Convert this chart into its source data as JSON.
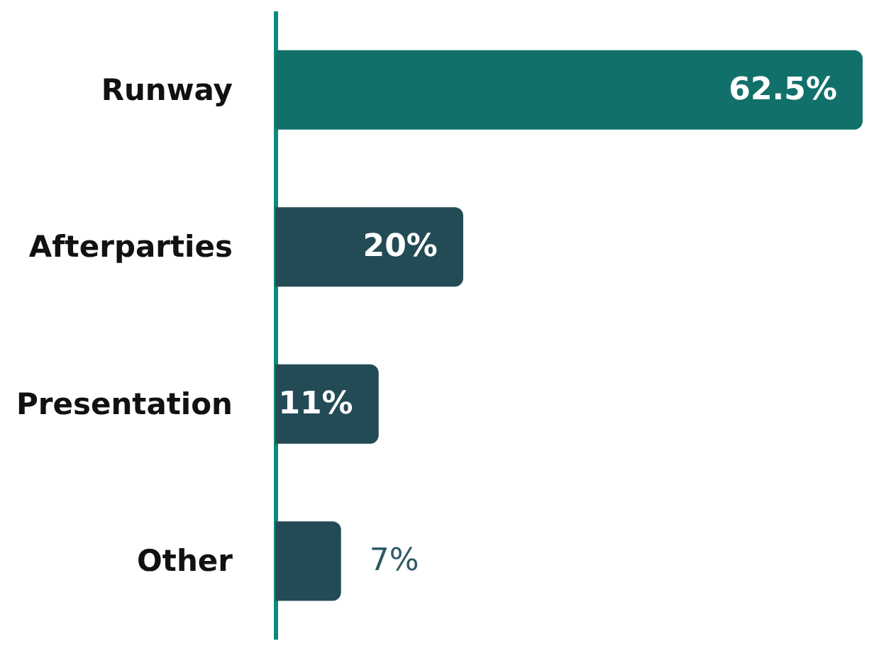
{
  "chart_data": {
    "type": "bar",
    "orientation": "horizontal",
    "categories": [
      "Runway",
      "Afterparties",
      "Presentation",
      "Other"
    ],
    "values": [
      62.5,
      20,
      11,
      7
    ],
    "colors": [
      "#11716a",
      "#234b55",
      "#234b55",
      "#234b55"
    ],
    "value_labels": [
      "62.5%",
      "20%",
      "11%",
      "7%"
    ]
  }
}
